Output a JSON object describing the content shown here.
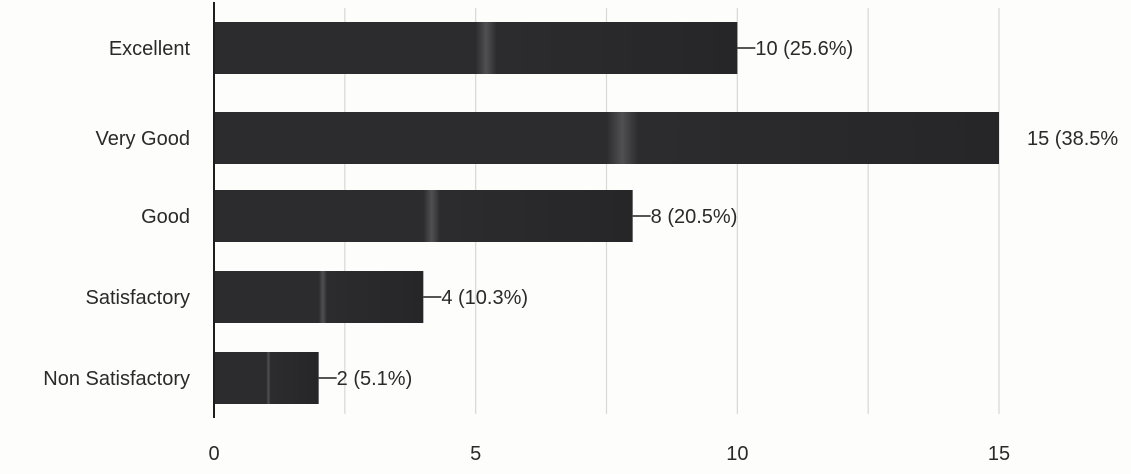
{
  "chart_data": {
    "type": "bar",
    "orientation": "horizontal",
    "title": "",
    "xlabel": "",
    "ylabel": "",
    "categories": [
      "Excellent",
      "Very Good",
      "Good",
      "Satisfactory",
      "Non Satisfactory"
    ],
    "values": [
      10,
      15,
      8,
      4,
      2
    ],
    "data_labels": [
      "10 (25.6%)",
      "15 (38.5%",
      "8 (20.5%)",
      "4 (10.3%)",
      "2 (5.1%)"
    ],
    "xlim": [
      0,
      15
    ],
    "x_ticks": [
      0,
      5,
      10,
      15
    ],
    "x_tick_labels": [
      "0",
      "5",
      "10",
      "15"
    ],
    "grid": true,
    "legend": "none",
    "colors": {
      "bar": "#2c2c2e",
      "bar_highlight": "#505052",
      "grid": "#d8d8d8",
      "axis": "#1e1e1e",
      "text": "#2a2a2a"
    }
  }
}
